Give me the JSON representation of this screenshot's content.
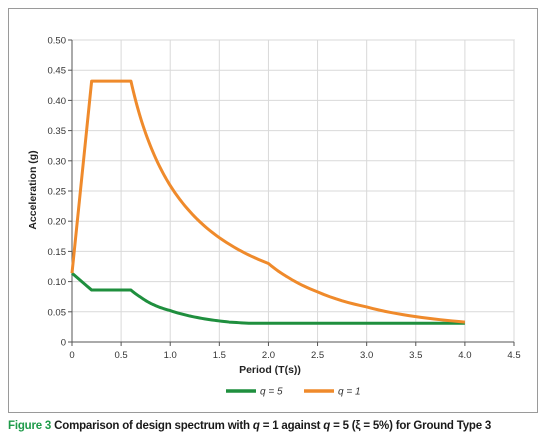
{
  "figure": {
    "label": "Figure 3",
    "caption_before_q1": " Comparison of design spectrum with ",
    "q_symbol": "q",
    "caption_mid1": " = 1 against ",
    "caption_mid2": " = 5 (ξ = 5%) for Ground Type 3"
  },
  "colors": {
    "q5": "#1f8f3e",
    "q1": "#ef8a2b",
    "grid": "#d9d9d9",
    "axis": "#555555",
    "caption_label": "#1f9b4a"
  },
  "chart_data": {
    "type": "line",
    "xlabel": "Period (T(s))",
    "ylabel": "Acceleration (g)",
    "xlim": [
      0,
      4.5
    ],
    "ylim": [
      0,
      0.5
    ],
    "xticks": [
      0,
      0.5,
      1.0,
      1.5,
      2.0,
      2.5,
      3.0,
      3.5,
      4.0,
      4.5
    ],
    "xtick_labels": [
      "0",
      "0.5",
      "1.0",
      "1.5",
      "2.0",
      "2.5",
      "3.0",
      "3.5",
      "4.0",
      "4.5"
    ],
    "yticks": [
      0,
      0.05,
      0.1,
      0.15,
      0.2,
      0.25,
      0.3,
      0.35,
      0.4,
      0.45,
      0.5
    ],
    "ytick_labels": [
      "0",
      "0.05",
      "0.10",
      "0.15",
      "0.20",
      "0.25",
      "0.30",
      "0.35",
      "0.40",
      "0.45",
      "0.50"
    ],
    "grid": true,
    "legend_position": "bottom-center",
    "series": [
      {
        "name": "q = 5",
        "color": "#1f8f3e",
        "x": [
          0,
          0.2,
          0.6,
          0.7,
          0.8,
          0.9,
          1.0,
          1.2,
          1.4,
          1.6,
          1.8,
          2.0,
          4.0
        ],
        "y": [
          0.114,
          0.086,
          0.086,
          0.074,
          0.064,
          0.057,
          0.052,
          0.043,
          0.037,
          0.033,
          0.031,
          0.031,
          0.031
        ]
      },
      {
        "name": "q = 1",
        "color": "#ef8a2b",
        "x": [
          0,
          0.2,
          0.6,
          0.7,
          0.8,
          0.9,
          1.0,
          1.2,
          1.4,
          1.6,
          1.8,
          2.0,
          2.2,
          2.5,
          3.0,
          3.5,
          4.0
        ],
        "y": [
          0.114,
          0.432,
          0.432,
          0.37,
          0.324,
          0.288,
          0.259,
          0.216,
          0.185,
          0.162,
          0.144,
          0.13,
          0.107,
          0.083,
          0.058,
          0.042,
          0.033
        ]
      }
    ]
  }
}
